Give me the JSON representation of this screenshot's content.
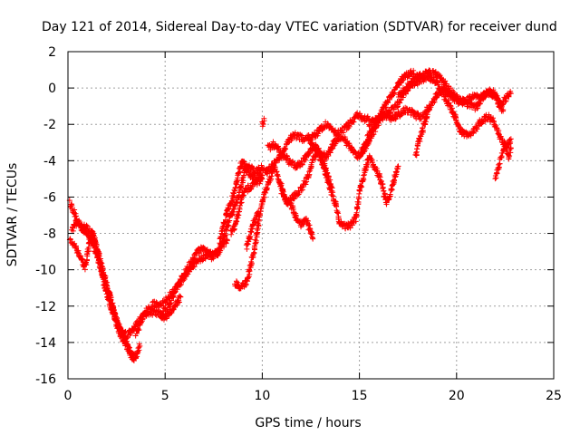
{
  "chart_data": {
    "type": "scatter",
    "title": "Day 121 of 2014, Sidereal Day-to-day VTEC variation (SDTVAR) for receiver dund",
    "xlabel": "GPS time / hours",
    "ylabel": "SDTVAR / TECUs",
    "xlim": [
      0,
      25
    ],
    "ylim": [
      -16,
      2
    ],
    "xticks": [
      0,
      5,
      10,
      15,
      20,
      25
    ],
    "yticks": [
      -16,
      -14,
      -12,
      -10,
      -8,
      -6,
      -4,
      -2,
      0,
      2
    ],
    "grid": true,
    "marker": "+",
    "series_color": "#ff0000",
    "tracks": [
      [
        [
          0.1,
          -6.3
        ],
        [
          0.3,
          -6.8
        ],
        [
          0.5,
          -7.5
        ],
        [
          0.8,
          -7.8
        ],
        [
          1.0,
          -8.0
        ],
        [
          1.3,
          -8.6
        ],
        [
          1.5,
          -9.3
        ],
        [
          1.8,
          -10.2
        ],
        [
          2.0,
          -11.0
        ],
        [
          2.3,
          -12.0
        ],
        [
          2.5,
          -12.8
        ],
        [
          2.8,
          -13.5
        ],
        [
          3.0,
          -14.0
        ],
        [
          3.2,
          -14.6
        ],
        [
          3.5,
          -14.8
        ],
        [
          3.7,
          -14.2
        ]
      ],
      [
        [
          0.1,
          -8.3
        ],
        [
          0.3,
          -8.6
        ],
        [
          0.5,
          -9.0
        ],
        [
          0.7,
          -9.4
        ],
        [
          0.9,
          -9.9
        ],
        [
          1.1,
          -8.5
        ],
        [
          1.3,
          -8.0
        ],
        [
          1.6,
          -9.5
        ],
        [
          1.9,
          -11.0
        ],
        [
          2.2,
          -12.0
        ],
        [
          2.5,
          -13.0
        ],
        [
          2.8,
          -13.8
        ],
        [
          3.1,
          -14.3
        ],
        [
          3.3,
          -14.8
        ],
        [
          3.4,
          -15.0
        ]
      ],
      [
        [
          0.2,
          -7.8
        ],
        [
          0.5,
          -7.3
        ],
        [
          0.8,
          -7.6
        ],
        [
          1.2,
          -7.9
        ],
        [
          1.5,
          -8.8
        ],
        [
          1.8,
          -10.0
        ],
        [
          2.1,
          -11.2
        ],
        [
          2.4,
          -12.5
        ],
        [
          2.7,
          -13.4
        ],
        [
          3.0,
          -13.6
        ],
        [
          3.3,
          -13.4
        ],
        [
          3.6,
          -12.9
        ],
        [
          3.9,
          -12.5
        ],
        [
          4.2,
          -12.3
        ],
        [
          4.6,
          -12.4
        ],
        [
          5.0,
          -12.6
        ],
        [
          5.4,
          -12.2
        ],
        [
          5.8,
          -11.5
        ]
      ],
      [
        [
          3.5,
          -13.5
        ],
        [
          3.7,
          -13.0
        ],
        [
          4.0,
          -12.3
        ],
        [
          4.4,
          -11.9
        ],
        [
          4.8,
          -11.9
        ],
        [
          5.2,
          -11.5
        ],
        [
          5.6,
          -11.0
        ],
        [
          6.0,
          -10.4
        ],
        [
          6.4,
          -9.8
        ],
        [
          6.8,
          -9.4
        ],
        [
          7.2,
          -9.2
        ],
        [
          7.6,
          -9.0
        ],
        [
          8.0,
          -8.6
        ],
        [
          8.2,
          -8.4
        ]
      ],
      [
        [
          4.8,
          -12.5
        ],
        [
          5.2,
          -12.0
        ],
        [
          5.5,
          -11.2
        ],
        [
          5.8,
          -10.6
        ],
        [
          6.1,
          -10.0
        ],
        [
          6.4,
          -9.5
        ],
        [
          6.7,
          -9.0
        ],
        [
          7.0,
          -8.8
        ],
        [
          7.4,
          -9.3
        ],
        [
          7.8,
          -9.0
        ],
        [
          8.0,
          -8.3
        ],
        [
          8.2,
          -7.6
        ],
        [
          8.4,
          -7.0
        ],
        [
          8.6,
          -6.5
        ],
        [
          8.8,
          -5.8
        ],
        [
          9.0,
          -5.0
        ],
        [
          9.2,
          -4.3
        ],
        [
          9.4,
          -4.4
        ],
        [
          9.6,
          -4.6
        ],
        [
          9.8,
          -4.5
        ],
        [
          10.0,
          -4.4
        ],
        [
          10.3,
          -4.6
        ]
      ],
      [
        [
          7.8,
          -8.5
        ],
        [
          8.0,
          -7.5
        ],
        [
          8.2,
          -6.8
        ],
        [
          8.4,
          -6.3
        ],
        [
          8.6,
          -5.6
        ],
        [
          8.8,
          -4.6
        ],
        [
          9.0,
          -4.0
        ],
        [
          9.2,
          -4.5
        ],
        [
          9.4,
          -4.8
        ],
        [
          9.7,
          -5.0
        ],
        [
          10.0,
          -4.8
        ]
      ],
      [
        [
          8.4,
          -8.0
        ],
        [
          8.6,
          -7.5
        ],
        [
          8.8,
          -6.8
        ],
        [
          9.0,
          -5.8
        ],
        [
          9.3,
          -5.5
        ],
        [
          9.7,
          -5.2
        ],
        [
          10.0,
          -5.0
        ]
      ],
      [
        [
          8.6,
          -10.7
        ],
        [
          8.8,
          -10.9
        ],
        [
          9.0,
          -10.9
        ],
        [
          9.2,
          -10.6
        ],
        [
          9.4,
          -9.8
        ],
        [
          9.6,
          -8.8
        ],
        [
          9.8,
          -7.5
        ],
        [
          10.0,
          -6.3
        ],
        [
          10.2,
          -5.6
        ],
        [
          10.4,
          -5.0
        ],
        [
          10.6,
          -4.3
        ],
        [
          10.8,
          -4.8
        ],
        [
          11.0,
          -5.5
        ],
        [
          11.2,
          -6.2
        ],
        [
          11.5,
          -6.5
        ],
        [
          11.8,
          -7.3
        ],
        [
          12.0,
          -7.5
        ],
        [
          12.3,
          -7.3
        ],
        [
          12.6,
          -8.3
        ]
      ],
      [
        [
          9.2,
          -8.8
        ],
        [
          9.4,
          -8.0
        ],
        [
          9.6,
          -7.3
        ],
        [
          9.8,
          -6.8
        ]
      ],
      [
        [
          10.0,
          -2.0
        ],
        [
          10.1,
          -1.8
        ]
      ],
      [
        [
          10.2,
          -4.6
        ],
        [
          10.5,
          -4.3
        ],
        [
          10.8,
          -4.0
        ],
        [
          11.0,
          -3.7
        ],
        [
          11.2,
          -3.2
        ],
        [
          11.5,
          -2.7
        ],
        [
          11.8,
          -2.6
        ],
        [
          12.1,
          -2.8
        ],
        [
          12.4,
          -2.7
        ],
        [
          12.7,
          -2.6
        ],
        [
          13.0,
          -2.3
        ],
        [
          13.2,
          -2.0
        ],
        [
          13.5,
          -2.2
        ],
        [
          13.8,
          -2.5
        ],
        [
          14.0,
          -2.4
        ],
        [
          14.3,
          -2.2
        ],
        [
          14.6,
          -1.8
        ],
        [
          14.9,
          -1.5
        ],
        [
          15.2,
          -1.7
        ],
        [
          15.5,
          -1.7
        ]
      ],
      [
        [
          10.3,
          -3.3
        ],
        [
          10.6,
          -3.1
        ],
        [
          10.9,
          -3.5
        ],
        [
          11.2,
          -3.8
        ],
        [
          11.5,
          -4.2
        ],
        [
          11.8,
          -4.3
        ],
        [
          12.1,
          -4.0
        ],
        [
          12.4,
          -3.5
        ],
        [
          12.7,
          -3.3
        ],
        [
          13.0,
          -3.6
        ],
        [
          13.3,
          -3.8
        ],
        [
          13.6,
          -3.2
        ],
        [
          13.9,
          -2.7
        ],
        [
          14.2,
          -2.8
        ],
        [
          14.5,
          -3.2
        ],
        [
          14.8,
          -3.7
        ],
        [
          15.0,
          -3.7
        ],
        [
          15.3,
          -3.3
        ],
        [
          15.5,
          -2.8
        ],
        [
          15.8,
          -2.3
        ],
        [
          16.0,
          -1.8
        ],
        [
          16.3,
          -1.5
        ],
        [
          16.6,
          -1.2
        ],
        [
          16.9,
          -1.0
        ],
        [
          17.2,
          -0.5
        ],
        [
          17.5,
          0.0
        ],
        [
          17.8,
          0.5
        ],
        [
          18.0,
          0.7
        ]
      ],
      [
        [
          11.0,
          -5.7
        ],
        [
          11.3,
          -6.3
        ],
        [
          11.6,
          -6.0
        ],
        [
          12.0,
          -5.6
        ],
        [
          12.3,
          -5.0
        ],
        [
          12.6,
          -4.0
        ],
        [
          12.9,
          -3.5
        ],
        [
          13.2,
          -4.5
        ],
        [
          13.5,
          -5.5
        ],
        [
          13.8,
          -6.5
        ],
        [
          14.0,
          -7.5
        ],
        [
          14.3,
          -7.6
        ],
        [
          14.6,
          -7.5
        ],
        [
          14.8,
          -7.2
        ],
        [
          15.0,
          -5.8
        ],
        [
          15.3,
          -4.5
        ],
        [
          15.5,
          -3.8
        ],
        [
          15.7,
          -4.2
        ],
        [
          16.0,
          -4.8
        ],
        [
          16.2,
          -5.5
        ],
        [
          16.4,
          -6.3
        ],
        [
          16.6,
          -5.8
        ],
        [
          16.8,
          -5.0
        ],
        [
          17.0,
          -4.3
        ]
      ],
      [
        [
          12.4,
          -2.8
        ],
        [
          12.7,
          -3.2
        ],
        [
          13.0,
          -3.6
        ],
        [
          13.3,
          -4.6
        ],
        [
          13.6,
          -5.5
        ]
      ],
      [
        [
          14.9,
          -3.8
        ],
        [
          15.2,
          -3.4
        ],
        [
          15.4,
          -2.8
        ],
        [
          15.6,
          -2.4
        ],
        [
          15.8,
          -2.0
        ],
        [
          16.0,
          -1.6
        ],
        [
          16.2,
          -1.2
        ],
        [
          16.4,
          -0.8
        ],
        [
          16.6,
          -0.5
        ],
        [
          16.8,
          -0.2
        ],
        [
          17.0,
          0.2
        ],
        [
          17.2,
          0.5
        ],
        [
          17.4,
          0.7
        ],
        [
          17.6,
          0.8
        ],
        [
          17.8,
          0.8
        ]
      ],
      [
        [
          15.5,
          -2.0
        ],
        [
          15.8,
          -1.8
        ],
        [
          16.1,
          -1.6
        ],
        [
          16.4,
          -1.5
        ],
        [
          16.7,
          -1.7
        ],
        [
          17.0,
          -1.5
        ],
        [
          17.3,
          -1.2
        ],
        [
          17.6,
          -1.3
        ],
        [
          17.9,
          -1.5
        ],
        [
          18.2,
          -1.6
        ],
        [
          18.5,
          -1.2
        ],
        [
          18.8,
          -0.8
        ],
        [
          19.0,
          -0.3
        ],
        [
          19.3,
          0.0
        ],
        [
          19.6,
          -0.3
        ],
        [
          19.9,
          -0.6
        ],
        [
          20.2,
          -0.8
        ],
        [
          20.5,
          -0.7
        ],
        [
          20.8,
          -0.5
        ],
        [
          21.1,
          -0.5
        ],
        [
          21.4,
          -0.3
        ],
        [
          21.7,
          -0.2
        ],
        [
          22.0,
          -0.5
        ],
        [
          22.2,
          -0.9
        ],
        [
          22.4,
          -1.2
        ]
      ],
      [
        [
          17.0,
          -0.5
        ],
        [
          17.3,
          -0.1
        ],
        [
          17.6,
          0.2
        ],
        [
          17.9,
          0.3
        ],
        [
          18.2,
          0.5
        ],
        [
          18.5,
          0.6
        ],
        [
          18.8,
          0.5
        ],
        [
          19.0,
          0.2
        ],
        [
          19.3,
          -0.3
        ],
        [
          19.6,
          -0.9
        ],
        [
          19.9,
          -1.5
        ],
        [
          20.1,
          -2.2
        ],
        [
          20.4,
          -2.6
        ],
        [
          20.7,
          -2.5
        ],
        [
          21.0,
          -2.2
        ],
        [
          21.3,
          -1.8
        ],
        [
          21.6,
          -1.6
        ],
        [
          21.9,
          -1.8
        ],
        [
          22.1,
          -2.3
        ],
        [
          22.3,
          -2.8
        ],
        [
          22.5,
          -3.2
        ],
        [
          22.7,
          -3.0
        ],
        [
          22.8,
          -2.8
        ]
      ],
      [
        [
          18.0,
          0.6
        ],
        [
          18.3,
          0.7
        ],
        [
          18.6,
          0.9
        ],
        [
          18.9,
          0.8
        ],
        [
          19.2,
          0.5
        ],
        [
          19.5,
          0.1
        ],
        [
          19.8,
          -0.3
        ],
        [
          20.1,
          -0.6
        ],
        [
          20.4,
          -0.8
        ],
        [
          20.7,
          -0.9
        ],
        [
          21.0,
          -1.1
        ],
        [
          21.3,
          -0.6
        ],
        [
          21.6,
          -0.3
        ],
        [
          21.9,
          -0.2
        ],
        [
          22.1,
          -0.6
        ],
        [
          22.3,
          -0.9
        ],
        [
          22.5,
          -0.6
        ],
        [
          22.7,
          -0.4
        ],
        [
          22.8,
          -0.3
        ]
      ],
      [
        [
          17.9,
          -3.8
        ],
        [
          18.0,
          -3.2
        ],
        [
          18.2,
          -2.5
        ],
        [
          18.4,
          -1.8
        ],
        [
          18.6,
          -1.2
        ]
      ],
      [
        [
          22.0,
          -5.0
        ],
        [
          22.1,
          -4.6
        ],
        [
          22.2,
          -4.2
        ],
        [
          22.3,
          -3.8
        ],
        [
          22.4,
          -3.4
        ],
        [
          22.5,
          -3.0
        ],
        [
          22.6,
          -3.4
        ],
        [
          22.7,
          -3.8
        ],
        [
          22.8,
          -3.3
        ]
      ]
    ]
  }
}
